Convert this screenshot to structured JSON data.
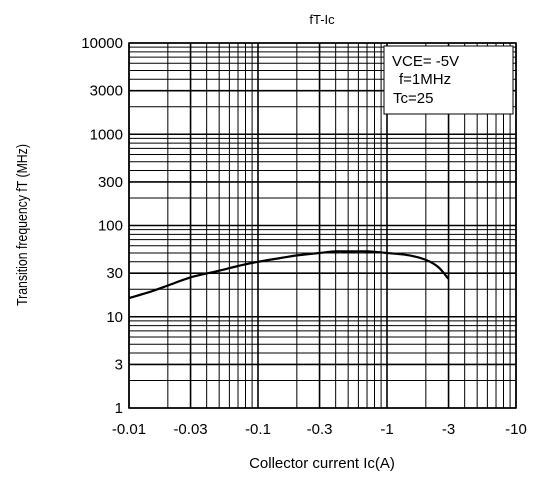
{
  "chart_data": {
    "type": "line",
    "title": "fT-Ic",
    "xlabel": "Collector current Ic(A)",
    "ylabel": "Transition frequency fT (MHz)",
    "x_scale": "log",
    "y_scale": "log",
    "x_direction": "reversed-magnitude",
    "xlim": [
      -0.01,
      -10
    ],
    "ylim": [
      1,
      10000
    ],
    "x_ticks": [
      {
        "value": -0.01,
        "label": "-0.01"
      },
      {
        "value": -0.03,
        "label": "-0.03"
      },
      {
        "value": -0.1,
        "label": "-0.1"
      },
      {
        "value": -0.3,
        "label": "-0.3"
      },
      {
        "value": -1,
        "label": "-1"
      },
      {
        "value": -3,
        "label": "-3"
      },
      {
        "value": -10,
        "label": "-10"
      }
    ],
    "y_ticks": [
      {
        "value": 1,
        "label": "1"
      },
      {
        "value": 3,
        "label": "3"
      },
      {
        "value": 10,
        "label": "10"
      },
      {
        "value": 30,
        "label": "30"
      },
      {
        "value": 100,
        "label": "100"
      },
      {
        "value": 300,
        "label": "300"
      },
      {
        "value": 1000,
        "label": "1000"
      },
      {
        "value": 3000,
        "label": "3000"
      },
      {
        "value": 10000,
        "label": "10000"
      }
    ],
    "grid": true,
    "legend_position": "top-right",
    "conditions": [
      "VCE= -5V",
      "f=1MHz",
      "Tc=25"
    ],
    "series": [
      {
        "x": [
          -0.01,
          -0.015,
          -0.02,
          -0.03,
          -0.05,
          -0.07,
          -0.1,
          -0.15,
          -0.2,
          -0.3,
          -0.4,
          -0.5,
          -0.7,
          -1,
          -1.5,
          -2,
          -2.5,
          -3
        ],
        "y": [
          16,
          19,
          22,
          27,
          32,
          36,
          40,
          44,
          47,
          50,
          52,
          52,
          52,
          50,
          47,
          42,
          35,
          26
        ]
      }
    ],
    "colors": {
      "line": "#000000",
      "grid": "#000000",
      "background": "#ffffff"
    }
  }
}
